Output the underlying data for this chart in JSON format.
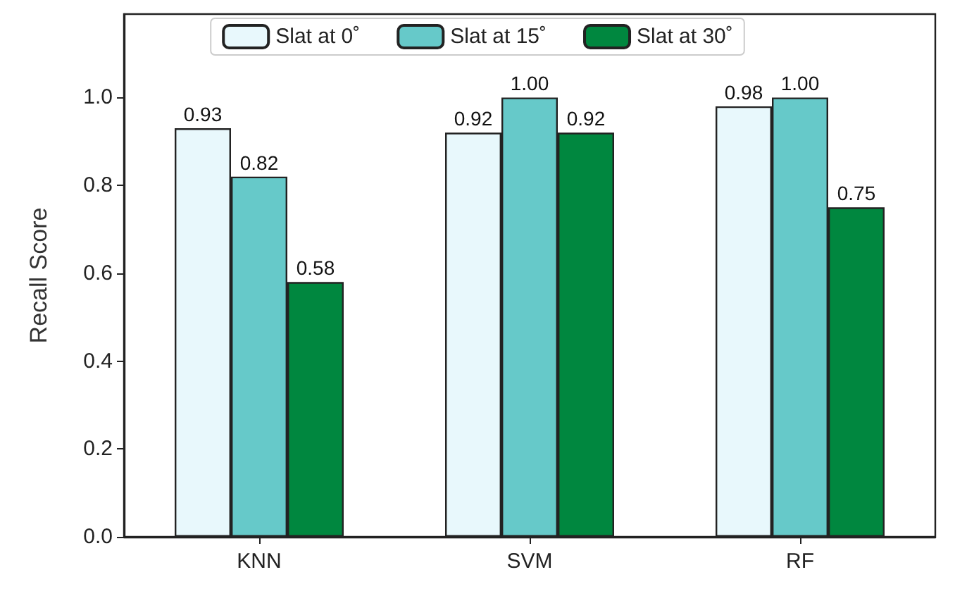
{
  "chart_data": {
    "type": "bar",
    "ylabel": "Recall Score",
    "categories": [
      "KNN",
      "SVM",
      "RF"
    ],
    "series": [
      {
        "name": "Slat at 0˚",
        "color": "#e8f8fc",
        "values": [
          0.93,
          0.92,
          0.98
        ],
        "value_labels": [
          "0.93",
          "0.92",
          "0.98"
        ]
      },
      {
        "name": "Slat at 15˚",
        "color": "#66c9c9",
        "values": [
          0.82,
          1.0,
          1.0
        ],
        "value_labels": [
          "0.82",
          "1.00",
          "1.00"
        ]
      },
      {
        "name": "Slat at 30˚",
        "color": "#00873f",
        "values": [
          0.58,
          0.92,
          0.75
        ],
        "value_labels": [
          "0.58",
          "0.92",
          "0.75"
        ]
      }
    ],
    "ylim": [
      0,
      1.19
    ],
    "yticks": [
      {
        "value": 0,
        "label": "0.0"
      },
      0.2,
      0.4,
      0.6,
      0.8,
      {
        "value": 1,
        "label": "1.0"
      }
    ],
    "grid": false,
    "legend": "top"
  }
}
